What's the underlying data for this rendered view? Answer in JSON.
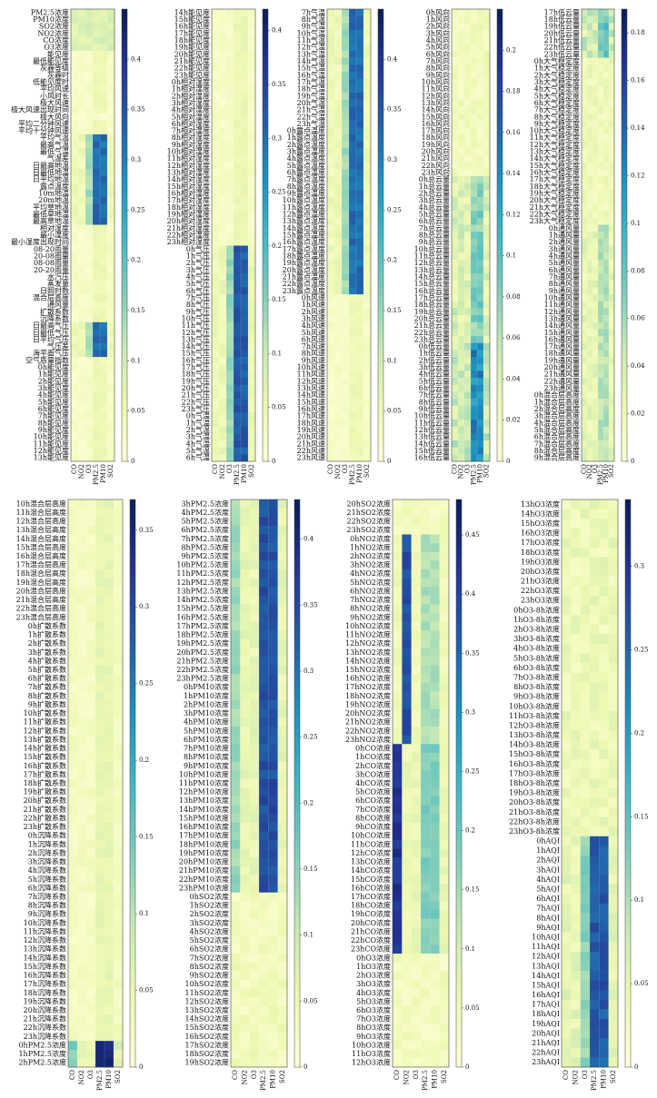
{
  "figure": {
    "pollutants": [
      "CO",
      "NO2",
      "O3",
      "PM2.5",
      "PM10",
      "SO2"
    ],
    "colors": [
      "#ffffd9",
      "#edf8b1",
      "#c7e9b4",
      "#7fcdbb",
      "#41b6c4",
      "#1d91c0",
      "#225ea8",
      "#253494",
      "#081d58"
    ]
  },
  "chart_data": [
    {
      "type": "heatmap",
      "features": [
        "PM2.5浓度",
        "PM10浓度",
        "SO2浓度",
        "NO2浓度",
        "CO浓度",
        "O3浓度",
        "能见度",
        "最低能见度",
        "灰霾等级",
        "灰霾时",
        "低能见度时",
        "平均风速",
        "小风时长",
        "极大风速",
        "极大风速出现时间",
        "极大风向",
        "平均二分钟风速",
        "平均十分钟风速",
        "平均气温",
        "最高气温",
        "最低气温",
        "气温差",
        "日最高地温",
        "日最低地温",
        "日平均地温",
        "露点温度",
        "10m地温",
        "20m地温",
        "平均草地温",
        "最低草地温",
        "最高草地温",
        "相对湿度",
        "最小湿度",
        "最小湿度出现时间",
        "08-20雨量",
        "20-08雨量",
        "08-08雨量",
        "20-20雨量",
        "水汽压",
        "蒸发量",
        "日照时数",
        "混合层高度",
        "通风量",
        "扩散系数",
        "沉降系数",
        "日最高气压",
        "日最低气压",
        "日平均气压",
        "气压差",
        "海平面气压",
        "空气质量指数",
        "0h能见度",
        "1h能见度",
        "2h能见度",
        "3h能见度",
        "4h能见度",
        "5h能见度",
        "6h能见度",
        "7h能见度",
        "8h能见度",
        "9h能见度",
        "10h能见度",
        "11h能见度",
        "12h能见度",
        "13h能见度"
      ],
      "colorbar_ticks": [
        "0",
        "0.05",
        "0.1",
        "0.15",
        "0.2",
        "0.25",
        "0.3",
        "0.35",
        "0.4"
      ],
      "vmax": 0.45
    },
    {
      "type": "heatmap",
      "features": [
        "14h能见度",
        "15h能见度",
        "16h能见度",
        "17h能见度",
        "18h能见度",
        "19h能见度",
        "20h能见度",
        "21h能见度",
        "22h能见度",
        "23h能见度",
        "0h相对湿度",
        "1h相对湿度",
        "2h相对湿度",
        "3h相对湿度",
        "4h相对湿度",
        "5h相对湿度",
        "6h相对湿度",
        "7h相对湿度",
        "8h相对湿度",
        "9h相对湿度",
        "10h相对湿度",
        "11h相对湿度",
        "12h相对湿度",
        "13h相对湿度",
        "14h相对湿度",
        "15h相对湿度",
        "16h相对湿度",
        "17h相对湿度",
        "18h相对湿度",
        "19h相对湿度",
        "20h相对湿度",
        "21h相对湿度",
        "22h相对湿度",
        "23h相对湿度",
        "0h气压",
        "1h气压",
        "2h气压",
        "3h气压",
        "4h气压",
        "5h气压",
        "6h气压",
        "7h气压",
        "8h气压",
        "9h气压",
        "10h气压",
        "11h气压",
        "12h气压",
        "13h气压",
        "14h气压",
        "15h气压",
        "16h气压",
        "17h气压",
        "18h气压",
        "19h气压",
        "20h气压",
        "21h气压",
        "22h气压",
        "23h气压",
        "0h气温",
        "1h气温",
        "2h气温",
        "3h气温",
        "4h气温",
        "5h气温",
        "6h气温"
      ],
      "colorbar_ticks": [
        "0",
        "0.05",
        "0.1",
        "0.15",
        "0.2",
        "0.25",
        "0.3",
        "0.35",
        "0.4"
      ],
      "vmax": 0.42
    },
    {
      "type": "heatmap",
      "features": [
        "7h气温",
        "8h气温",
        "9h气温",
        "10h气温",
        "11h气温",
        "12h气温",
        "13h气温",
        "14h气温",
        "15h气温",
        "16h气温",
        "17h气温",
        "18h气温",
        "19h气温",
        "20h气温",
        "21h气温",
        "22h气温",
        "23h气温",
        "0h露点温度",
        "1h露点温度",
        "2h露点温度",
        "3h露点温度",
        "4h露点温度",
        "5h露点温度",
        "6h露点温度",
        "7h露点温度",
        "8h露点温度",
        "9h露点温度",
        "10h露点温度",
        "11h露点温度",
        "12h露点温度",
        "13h露点温度",
        "14h露点温度",
        "15h露点温度",
        "16h露点温度",
        "17h露点温度",
        "18h露点温度",
        "19h露点温度",
        "20h露点温度",
        "21h露点温度",
        "22h露点温度",
        "23h露点温度",
        "0h风速",
        "1h风速",
        "2h风速",
        "3h风速",
        "4h风速",
        "5h风速",
        "6h风速",
        "7h风速",
        "8h风速",
        "9h风速",
        "10h风速",
        "11h风速",
        "12h风速",
        "13h风速",
        "14h风速",
        "15h风速",
        "16h风速",
        "17h风速",
        "18h风速",
        "19h风速",
        "20h风速",
        "21h风速",
        "22h风速",
        "23h风速"
      ],
      "colorbar_ticks": [
        "0",
        "0.05",
        "0.1",
        "0.15",
        "0.2",
        "0.25",
        "0.3",
        "0.35",
        "0.4"
      ],
      "vmax": 0.45
    },
    {
      "type": "heatmap",
      "features": [
        "0h风向",
        "1h风向",
        "2h风向",
        "3h风向",
        "4h风向",
        "5h风向",
        "6h风向",
        "7h风向",
        "8h风向",
        "9h风向",
        "10h风向",
        "11h风向",
        "12h风向",
        "13h风向",
        "14h风向",
        "15h风向",
        "16h风向",
        "17h风向",
        "18h风向",
        "19h风向",
        "20h风向",
        "21h风向",
        "22h风向",
        "23h风向",
        "0h总云量",
        "1h总云量",
        "2h总云量",
        "3h总云量",
        "4h总云量",
        "5h总云量",
        "6h总云量",
        "7h总云量",
        "8h总云量",
        "9h总云量",
        "10h总云量",
        "11h总云量",
        "12h总云量",
        "13h总云量",
        "14h总云量",
        "15h总云量",
        "16h总云量",
        "17h总云量",
        "18h总云量",
        "19h总云量",
        "20h总云量",
        "21h总云量",
        "22h总云量",
        "23h总云量",
        "0h低云量",
        "1h低云量",
        "2h低云量",
        "3h低云量",
        "4h低云量",
        "5h低云量",
        "6h低云量",
        "7h低云量",
        "8h低云量",
        "9h低云量",
        "10h低云量",
        "11h低云量",
        "12h低云量",
        "13h低云量",
        "14h低云量",
        "15h低云量",
        "16h低云量"
      ],
      "colorbar_ticks": [
        "0",
        "0.02",
        "0.04",
        "0.06",
        "0.08",
        "0.1",
        "0.12",
        "0.14",
        "0.16",
        "0.18",
        "0.2"
      ],
      "vmax": 0.22
    },
    {
      "type": "heatmap",
      "features": [
        "17h低云量",
        "18h低云量",
        "19h低云量",
        "20h低云量",
        "21h低云量",
        "22h低云量",
        "23h低云量",
        "0h大气稳定度",
        "1h大气稳定度",
        "2h大气稳定度",
        "3h大气稳定度",
        "4h大气稳定度",
        "5h大气稳定度",
        "6h大气稳定度",
        "7h大气稳定度",
        "8h大气稳定度",
        "9h大气稳定度",
        "10h大气稳定度",
        "11h大气稳定度",
        "12h大气稳定度",
        "13h大气稳定度",
        "14h大气稳定度",
        "15h大气稳定度",
        "16h大气稳定度",
        "17h大气稳定度",
        "18h大气稳定度",
        "19h大气稳定度",
        "20h大气稳定度",
        "21h大气稳定度",
        "22h大气稳定度",
        "23h大气稳定度",
        "0h通风量",
        "1h通风量",
        "2h通风量",
        "3h通风量",
        "4h通风量",
        "5h通风量",
        "6h通风量",
        "7h通风量",
        "8h通风量",
        "9h通风量",
        "10h通风量",
        "11h通风量",
        "12h通风量",
        "13h通风量",
        "14h通风量",
        "15h通风量",
        "16h通风量",
        "17h通风量",
        "18h通风量",
        "19h通风量",
        "20h通风量",
        "21h通风量",
        "22h通风量",
        "23h通风量",
        "0h混合层高度",
        "1h混合层高度",
        "2h混合层高度",
        "3h混合层高度",
        "4h混合层高度",
        "5h混合层高度",
        "6h混合层高度",
        "7h混合层高度",
        "8h混合层高度",
        "9h混合层高度"
      ],
      "colorbar_ticks": [
        "0",
        "0.02",
        "0.04",
        "0.06",
        "0.08",
        "0.1",
        "0.12",
        "0.14",
        "0.16",
        "0.18"
      ],
      "vmax": 0.19
    },
    {
      "type": "heatmap",
      "features": [
        "10h混合层高度",
        "11h混合层高度",
        "12h混合层高度",
        "13h混合层高度",
        "14h混合层高度",
        "15h混合层高度",
        "16h混合层高度",
        "17h混合层高度",
        "18h混合层高度",
        "19h混合层高度",
        "20h混合层高度",
        "21h混合层高度",
        "22h混合层高度",
        "23h混合层高度",
        "0h扩散系数",
        "1h扩散系数",
        "2h扩散系数",
        "3h扩散系数",
        "4h扩散系数",
        "5h扩散系数",
        "6h扩散系数",
        "7h扩散系数",
        "8h扩散系数",
        "9h扩散系数",
        "10h扩散系数",
        "11h扩散系数",
        "12h扩散系数",
        "13h扩散系数",
        "14h扩散系数",
        "15h扩散系数",
        "16h扩散系数",
        "17h扩散系数",
        "18h扩散系数",
        "19h扩散系数",
        "20h扩散系数",
        "21h扩散系数",
        "22h扩散系数",
        "23h扩散系数",
        "0h沉降系数",
        "1h沉降系数",
        "2h沉降系数",
        "3h沉降系数",
        "4h沉降系数",
        "5h沉降系数",
        "6h沉降系数",
        "7h沉降系数",
        "8h沉降系数",
        "9h沉降系数",
        "10h沉降系数",
        "11h沉降系数",
        "12h沉降系数",
        "13h沉降系数",
        "14h沉降系数",
        "15h沉降系数",
        "16h沉降系数",
        "17h沉降系数",
        "18h沉降系数",
        "19h沉降系数",
        "20h沉降系数",
        "21h沉降系数",
        "22h沉降系数",
        "23h沉降系数",
        "0hPM2.5浓度",
        "1hPM2.5浓度",
        "2hPM2.5浓度"
      ],
      "colorbar_ticks": [
        "0",
        "0.05",
        "0.1",
        "0.15",
        "0.2",
        "0.25",
        "0.3",
        "0.35"
      ],
      "vmax": 0.37
    },
    {
      "type": "heatmap",
      "features": [
        "3hPM2.5浓度",
        "4hPM2.5浓度",
        "5hPM2.5浓度",
        "6hPM2.5浓度",
        "7hPM2.5浓度",
        "8hPM2.5浓度",
        "9hPM2.5浓度",
        "10hPM2.5浓度",
        "11hPM2.5浓度",
        "12hPM2.5浓度",
        "13hPM2.5浓度",
        "14hPM2.5浓度",
        "15hPM2.5浓度",
        "16hPM2.5浓度",
        "17hPM2.5浓度",
        "18hPM2.5浓度",
        "19hPM2.5浓度",
        "20hPM2.5浓度",
        "21hPM2.5浓度",
        "22hPM2.5浓度",
        "23hPM2.5浓度",
        "0hPM10浓度",
        "1hPM10浓度",
        "2hPM10浓度",
        "3hPM10浓度",
        "4hPM10浓度",
        "5hPM10浓度",
        "6hPM10浓度",
        "7hPM10浓度",
        "8hPM10浓度",
        "9hPM10浓度",
        "10hPM10浓度",
        "11hPM10浓度",
        "12hPM10浓度",
        "13hPM10浓度",
        "14hPM10浓度",
        "15hPM10浓度",
        "16hPM10浓度",
        "17hPM10浓度",
        "18hPM10浓度",
        "19hPM10浓度",
        "20hPM10浓度",
        "21hPM10浓度",
        "22hPM10浓度",
        "23hPM10浓度",
        "0hSO2浓度",
        "1hSO2浓度",
        "2hSO2浓度",
        "3hSO2浓度",
        "4hSO2浓度",
        "5hSO2浓度",
        "6hSO2浓度",
        "7hSO2浓度",
        "8hSO2浓度",
        "9hSO2浓度",
        "10hSO2浓度",
        "11hSO2浓度",
        "12hSO2浓度",
        "13hSO2浓度",
        "14hSO2浓度",
        "15hSO2浓度",
        "16hSO2浓度",
        "17hSO2浓度",
        "18hSO2浓度",
        "19hSO2浓度"
      ],
      "colorbar_ticks": [
        "0",
        "0.05",
        "0.1",
        "0.15",
        "0.2",
        "0.25",
        "0.3",
        "0.35",
        "0.4"
      ],
      "vmax": 0.43
    },
    {
      "type": "heatmap",
      "features": [
        "20hSO2浓度",
        "21hSO2浓度",
        "22hSO2浓度",
        "23hSO2浓度",
        "0hNO2浓度",
        "1hNO2浓度",
        "2hNO2浓度",
        "3hNO2浓度",
        "4hNO2浓度",
        "5hNO2浓度",
        "6hNO2浓度",
        "7hNO2浓度",
        "8hNO2浓度",
        "9hNO2浓度",
        "10hNO2浓度",
        "11hNO2浓度",
        "12hNO2浓度",
        "13hNO2浓度",
        "14hNO2浓度",
        "15hNO2浓度",
        "16hNO2浓度",
        "17hNO2浓度",
        "18hNO2浓度",
        "19hNO2浓度",
        "20hNO2浓度",
        "21hNO2浓度",
        "22hNO2浓度",
        "23hNO2浓度",
        "0hCO浓度",
        "1hCO浓度",
        "2hCO浓度",
        "3hCO浓度",
        "4hCO浓度",
        "5hCO浓度",
        "6hCO浓度",
        "7hCO浓度",
        "8hCO浓度",
        "9hCO浓度",
        "10hCO浓度",
        "11hCO浓度",
        "12hCO浓度",
        "13hCO浓度",
        "14hCO浓度",
        "15hCO浓度",
        "16hCO浓度",
        "17hCO浓度",
        "18hCO浓度",
        "19hCO浓度",
        "20hCO浓度",
        "21hCO浓度",
        "22hCO浓度",
        "23hCO浓度",
        "0hO3浓度",
        "1hO3浓度",
        "2hO3浓度",
        "3hO3浓度",
        "4hO3浓度",
        "5hO3浓度",
        "6hO3浓度",
        "7hO3浓度",
        "8hO3浓度",
        "9hO3浓度",
        "10hO3浓度",
        "11hO3浓度",
        "12hO3浓度"
      ],
      "colorbar_ticks": [
        "0",
        "0.05",
        "0.1",
        "0.15",
        "0.2",
        "0.25",
        "0.3",
        "0.35",
        "0.4",
        "0.45"
      ],
      "vmax": 0.48
    },
    {
      "type": "heatmap",
      "features": [
        "13hO3浓度",
        "14hO3浓度",
        "15hO3浓度",
        "16hO3浓度",
        "17hO3浓度",
        "18hO3浓度",
        "19hO3浓度",
        "20hO3浓度",
        "21hO3浓度",
        "22hO3浓度",
        "23hO3浓度",
        "0hO3-8h浓度",
        "1hO3-8h浓度",
        "2hO3-8h浓度",
        "3hO3-8h浓度",
        "4hO3-8h浓度",
        "5hO3-8h浓度",
        "6hO3-8h浓度",
        "7hO3-8h浓度",
        "8hO3-8h浓度",
        "9hO3-8h浓度",
        "10hO3-8h浓度",
        "11hO3-8h浓度",
        "12hO3-8h浓度",
        "13hO3-8h浓度",
        "14hO3-8h浓度",
        "15hO3-8h浓度",
        "16hO3-8h浓度",
        "17hO3-8h浓度",
        "18hO3-8h浓度",
        "19hO3-8h浓度",
        "20hO3-8h浓度",
        "21hO3-8h浓度",
        "22hO3-8h浓度",
        "23hO3-8h浓度",
        "0hAQI",
        "1hAQI",
        "2hAQI",
        "3hAQI",
        "4hAQI",
        "5hAQI",
        "6hAQI",
        "7hAQI",
        "8hAQI",
        "9hAQI",
        "10hAQI",
        "11hAQI",
        "12hAQI",
        "13hAQI",
        "14hAQI",
        "15hAQI",
        "16hAQI",
        "17hAQI",
        "18hAQI",
        "19hAQI",
        "20hAQI",
        "21hAQI",
        "22hAQI",
        "23hAQI"
      ],
      "colorbar_ticks": [
        "0",
        "0.05",
        "0.1",
        "0.15",
        "0.2",
        "0.25",
        "0.3"
      ],
      "vmax": 0.34
    }
  ]
}
